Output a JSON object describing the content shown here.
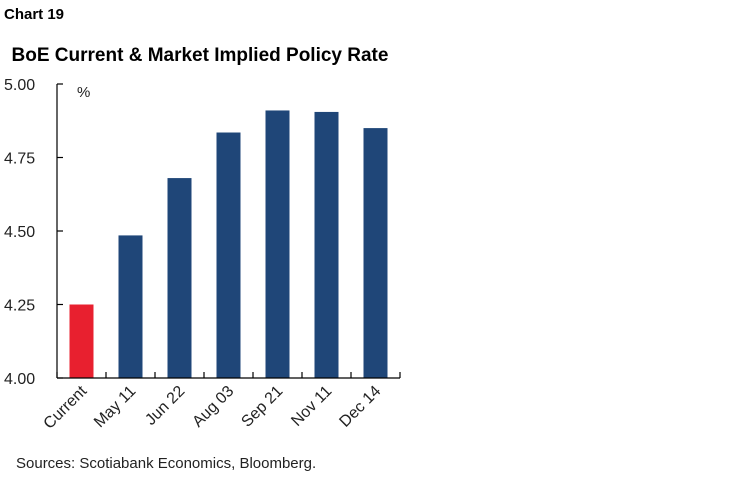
{
  "chart_number": "Chart 19",
  "source": "Sources: Scotiabank Economics, Bloomberg.",
  "colors": {
    "current": "#e8202f",
    "implied": "#1f4678",
    "axis": "#000000"
  },
  "chart_data": {
    "type": "bar",
    "title": "BoE Current & Market Implied Policy Rate",
    "ylabel": "%",
    "ylim": [
      4.0,
      5.0
    ],
    "yticks": [
      "4.00",
      "4.25",
      "4.50",
      "4.75",
      "5.00"
    ],
    "grid": false,
    "categories": [
      "Current",
      "May 11",
      "Jun 22",
      "Aug 03",
      "Sep 21",
      "Nov 11",
      "Dec 14"
    ],
    "values": [
      4.25,
      4.485,
      4.68,
      4.835,
      4.91,
      4.905,
      4.85
    ]
  }
}
